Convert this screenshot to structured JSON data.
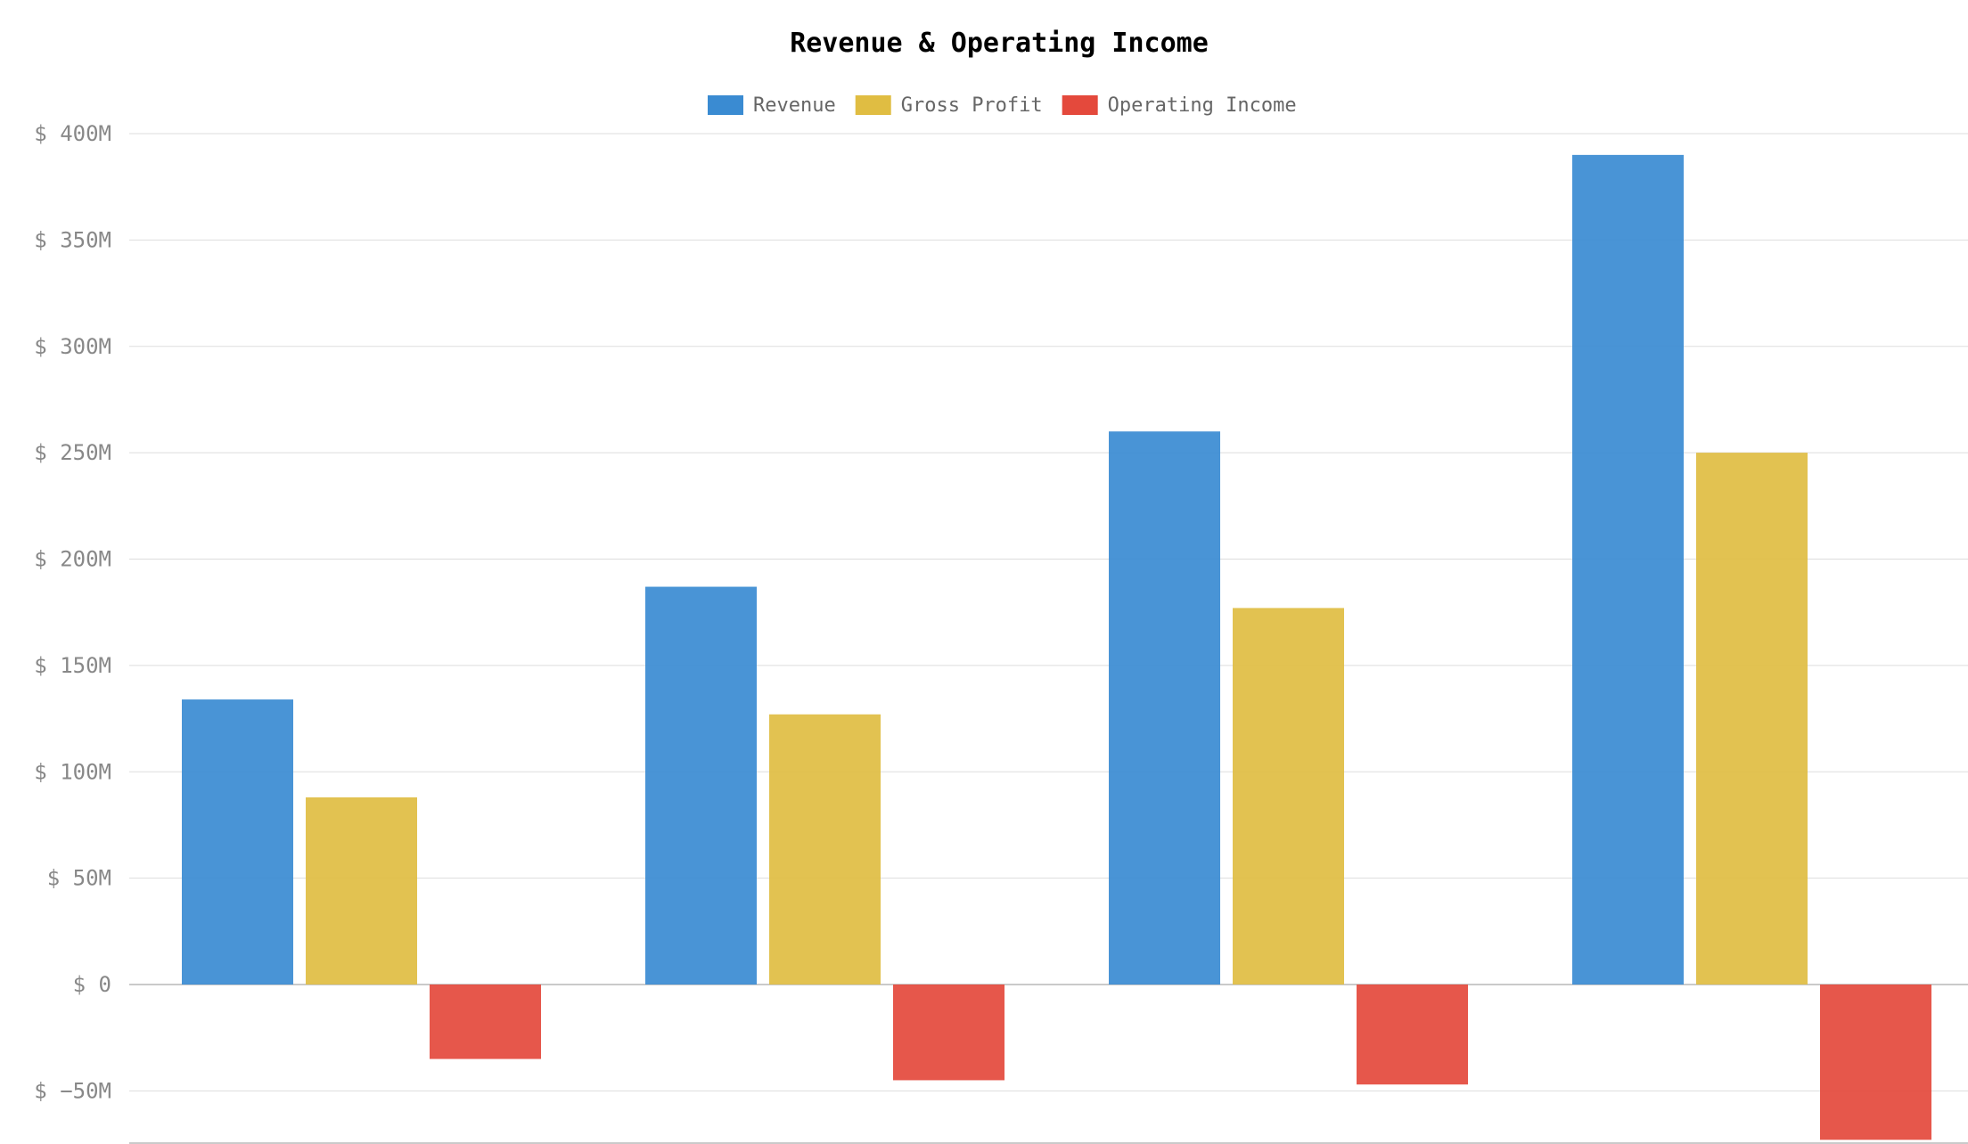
{
  "chart_data": {
    "type": "bar",
    "title": "Revenue & Operating Income",
    "categories": [
      "",
      "",
      "",
      ""
    ],
    "series": [
      {
        "name": "Revenue",
        "color": "#3a8bd2",
        "values": [
          134,
          187,
          260,
          390
        ]
      },
      {
        "name": "Gross Profit",
        "color": "#e0bd42",
        "values": [
          88,
          127,
          177,
          250
        ]
      },
      {
        "name": "Operating Income",
        "color": "#e4493c",
        "values": [
          -35,
          -45,
          -47,
          -73
        ]
      }
    ],
    "ylim": [
      -75,
      400
    ],
    "yticks": [
      {
        "value": 400,
        "label": "$ 400M"
      },
      {
        "value": 350,
        "label": "$ 350M"
      },
      {
        "value": 300,
        "label": "$ 300M"
      },
      {
        "value": 250,
        "label": "$ 250M"
      },
      {
        "value": 200,
        "label": "$ 200M"
      },
      {
        "value": 150,
        "label": "$ 150M"
      },
      {
        "value": 100,
        "label": "$ 100M"
      },
      {
        "value": 50,
        "label": "$ 50M"
      },
      {
        "value": 0,
        "label": "$ 0"
      },
      {
        "value": -50,
        "label": "$ −50M"
      }
    ],
    "xlabel": "",
    "ylabel": "",
    "grid": true,
    "legend": "top-center"
  }
}
